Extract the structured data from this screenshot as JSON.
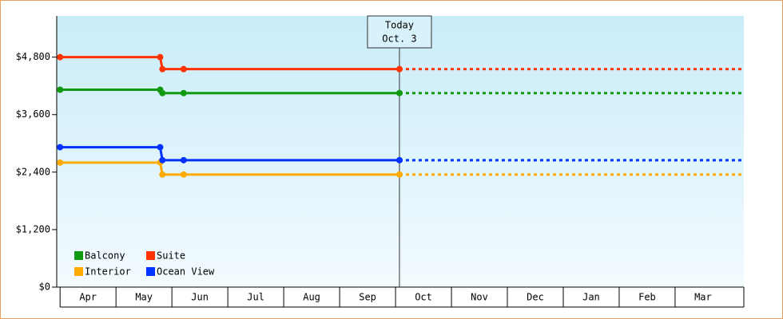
{
  "chart_data": {
    "type": "line",
    "x": [
      0,
      1.79,
      1.83,
      2.21,
      6.07
    ],
    "xlim": [
      -0.06,
      12.23
    ],
    "xticks": [
      {
        "value": 0.5,
        "label": "Apr"
      },
      {
        "value": 1.5,
        "label": "May"
      },
      {
        "value": 2.5,
        "label": "Jun"
      },
      {
        "value": 3.5,
        "label": "Jul"
      },
      {
        "value": 4.5,
        "label": "Aug"
      },
      {
        "value": 5.5,
        "label": "Sep"
      },
      {
        "value": 6.5,
        "label": "Oct"
      },
      {
        "value": 7.5,
        "label": "Nov"
      },
      {
        "value": 8.5,
        "label": "Dec"
      },
      {
        "value": 9.5,
        "label": "Jan"
      },
      {
        "value": 10.5,
        "label": "Feb"
      },
      {
        "value": 11.5,
        "label": "Mar"
      }
    ],
    "ylim": [
      0,
      5660
    ],
    "yticks": [
      {
        "value": 0,
        "label": "$0"
      },
      {
        "value": 1200,
        "label": "$1,200"
      },
      {
        "value": 2400,
        "label": "$2,400"
      },
      {
        "value": 3600,
        "label": "$3,600"
      },
      {
        "value": 4800,
        "label": "$4,800"
      }
    ],
    "series": [
      {
        "name": "Balcony",
        "color": "#119911",
        "values": [
          4120,
          4120,
          4050,
          4050,
          4050
        ]
      },
      {
        "name": "Suite",
        "color": "#ff3300",
        "values": [
          4800,
          4800,
          4550,
          4550,
          4550
        ]
      },
      {
        "name": "Interior",
        "color": "#ffaa00",
        "values": [
          2600,
          2600,
          2350,
          2350,
          2350
        ]
      },
      {
        "name": "Ocean View",
        "color": "#0033ff",
        "values": [
          2920,
          2920,
          2650,
          2650,
          2650
        ]
      }
    ],
    "projection": "dashed",
    "annotation": {
      "x": 6.07,
      "lines": [
        "Today",
        "Oct. 3"
      ]
    },
    "legend": "lower-left"
  }
}
